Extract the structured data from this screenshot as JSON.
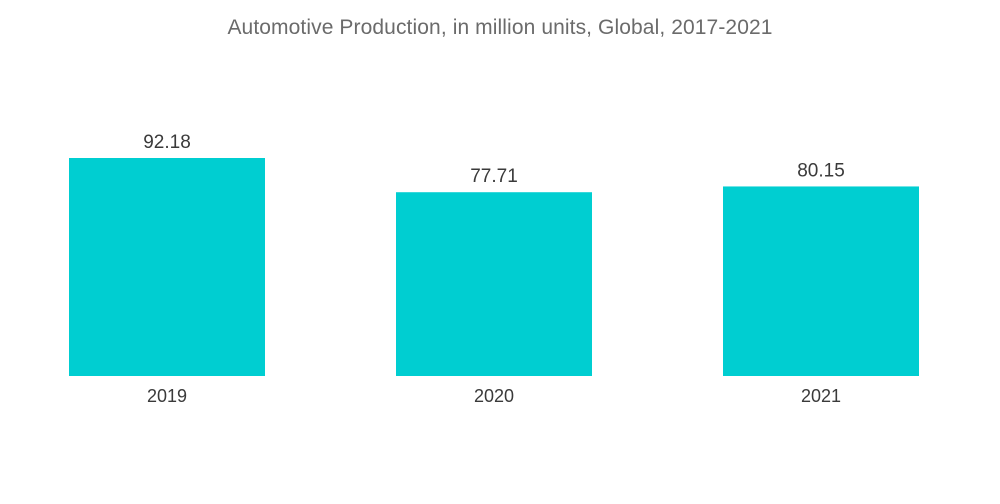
{
  "chart_data": {
    "type": "bar",
    "title": "Automotive Production, in million units, Global, 2017-2021",
    "categories": [
      "2019",
      "2020",
      "2021"
    ],
    "values": [
      92.18,
      77.71,
      80.15
    ],
    "value_labels": [
      "92.18",
      "77.71",
      "80.15"
    ],
    "xlabel": "",
    "ylabel": "",
    "ylim": [
      0,
      92.18
    ],
    "grid": false,
    "legend": "none",
    "bar_color": "#00ced1"
  }
}
